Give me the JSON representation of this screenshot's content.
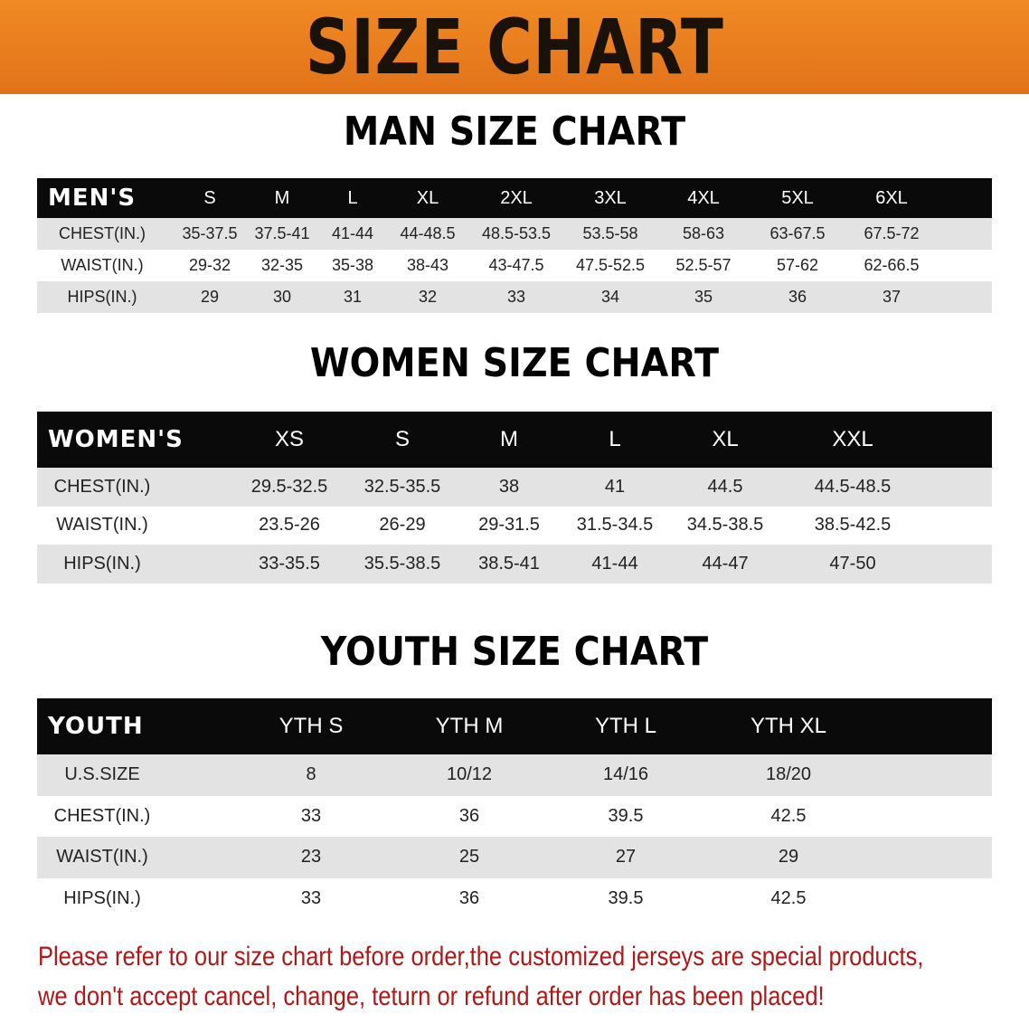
{
  "banner": {
    "title": "SIZE CHART",
    "color": "#e87a1e"
  },
  "men": {
    "title": "MAN SIZE CHART",
    "header": [
      "MEN'S",
      "S",
      "M",
      "L",
      "XL",
      "2XL",
      "3XL",
      "4XL",
      "5XL",
      "6XL"
    ],
    "rows": [
      [
        "CHEST(IN.)",
        "35-37.5",
        "37.5-41",
        "41-44",
        "44-48.5",
        "48.5-53.5",
        "53.5-58",
        "58-63",
        "63-67.5",
        "67.5-72"
      ],
      [
        "WAIST(IN.)",
        "29-32",
        "32-35",
        "35-38",
        "38-43",
        "43-47.5",
        "47.5-52.5",
        "52.5-57",
        "57-62",
        "62-66.5"
      ],
      [
        "HIPS(IN.)",
        "29",
        "30",
        "31",
        "32",
        "33",
        "34",
        "35",
        "36",
        "37"
      ]
    ]
  },
  "women": {
    "title": "WOMEN SIZE CHART",
    "header": [
      "WOMEN'S",
      "XS",
      "S",
      "M",
      "L",
      "XL",
      "XXL"
    ],
    "rows": [
      [
        "CHEST(IN.)",
        "29.5-32.5",
        "32.5-35.5",
        "38",
        "41",
        "44.5",
        "44.5-48.5"
      ],
      [
        "WAIST(IN.)",
        "23.5-26",
        "26-29",
        "29-31.5",
        "31.5-34.5",
        "34.5-38.5",
        "38.5-42.5"
      ],
      [
        "HIPS(IN.)",
        "33-35.5",
        "35.5-38.5",
        "38.5-41",
        "41-44",
        "44-47",
        "47-50"
      ]
    ]
  },
  "youth": {
    "title": "YOUTH SIZE CHART",
    "header": [
      "YOUTH",
      "YTH S",
      "YTH M",
      "YTH L",
      "YTH XL"
    ],
    "rows": [
      [
        "U.S.SIZE",
        "8",
        "10/12",
        "14/16",
        "18/20"
      ],
      [
        "CHEST(IN.)",
        "33",
        "36",
        "39.5",
        "42.5"
      ],
      [
        "WAIST(IN.)",
        "23",
        "25",
        "27",
        "29"
      ],
      [
        "HIPS(IN.)",
        "33",
        "36",
        "39.5",
        "42.5"
      ]
    ]
  },
  "note": {
    "line1": "Please refer to our size chart before order,the customized jerseys are special products,",
    "line2": "we don't accept cancel, change, teturn or refund after order has been placed!",
    "color": "#b01818"
  }
}
